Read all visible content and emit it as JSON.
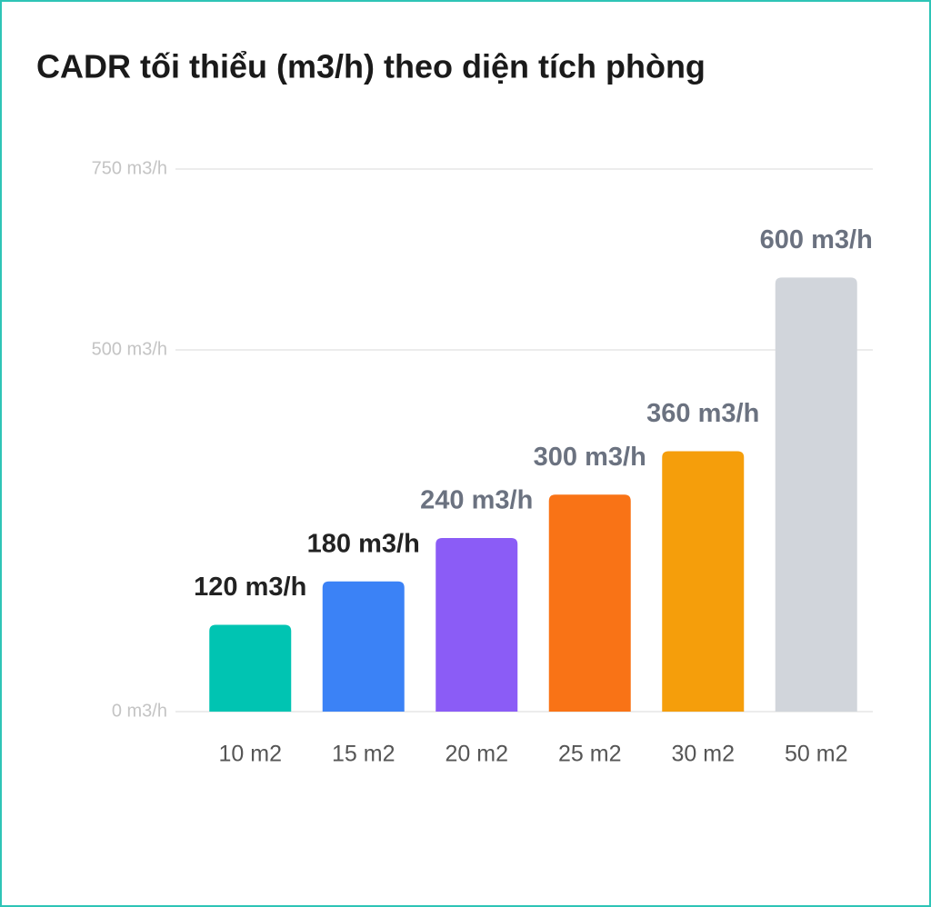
{
  "chart_data": {
    "type": "bar",
    "title": "CADR tối thiểu (m3/h) theo diện tích phòng",
    "categories": [
      "10 m2",
      "15 m2",
      "20 m2",
      "25 m2",
      "30 m2",
      "50 m2"
    ],
    "values": [
      120,
      180,
      240,
      300,
      360,
      600
    ],
    "value_labels": [
      "120 m3/h",
      "180 m3/h",
      "240 m3/h",
      "300 m3/h",
      "360 m3/h",
      "600 m3/h"
    ],
    "colors": [
      "#00c4b2",
      "#3b82f6",
      "#8b5cf6",
      "#f97316",
      "#f59e0b",
      "#d1d5db"
    ],
    "value_label_colors": [
      "#222222",
      "#222222",
      "#6b7280",
      "#6b7280",
      "#6b7280",
      "#6b7280"
    ],
    "ylim": [
      0,
      750
    ],
    "yticks": [
      {
        "value": 0,
        "label": "0 m3/h"
      },
      {
        "value": 500,
        "label": "500 m3/h"
      },
      {
        "value": 750,
        "label": "750 m3/h"
      }
    ],
    "grid": true
  }
}
